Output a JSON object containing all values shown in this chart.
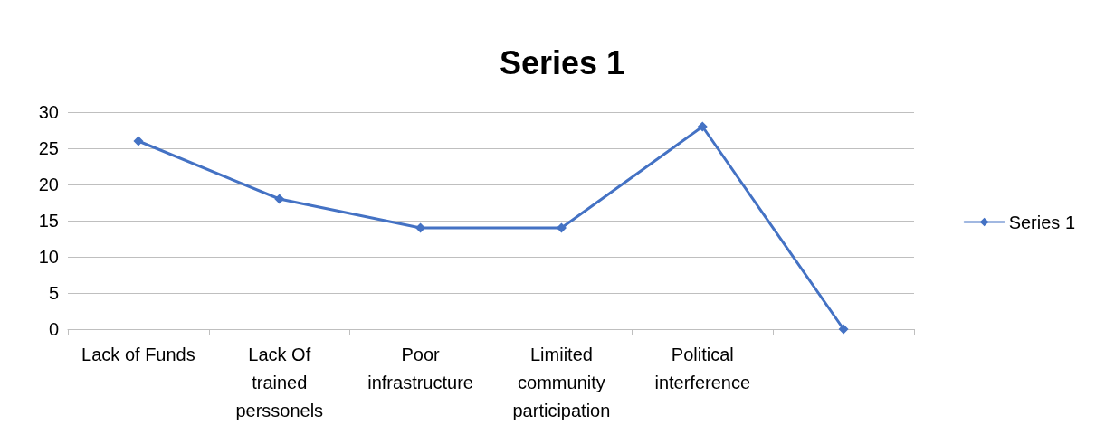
{
  "chart_data": {
    "type": "line",
    "title": "Series 1",
    "categories": [
      "Lack of Funds",
      "Lack Of\ntrained\nperssonels",
      "Poor\ninfrastructure",
      "Limiited\ncommunity\nparticipation",
      "Political\ninterference",
      null
    ],
    "series": [
      {
        "name": "Series 1",
        "color": "#4472c4",
        "values": [
          26,
          18,
          14,
          14,
          28,
          0
        ]
      }
    ],
    "ylim": [
      0,
      30
    ],
    "yticks": [
      0,
      5,
      10,
      15,
      20,
      25,
      30
    ],
    "grid": "y",
    "legend": "right",
    "marker": "diamond",
    "line_style": "solid"
  }
}
